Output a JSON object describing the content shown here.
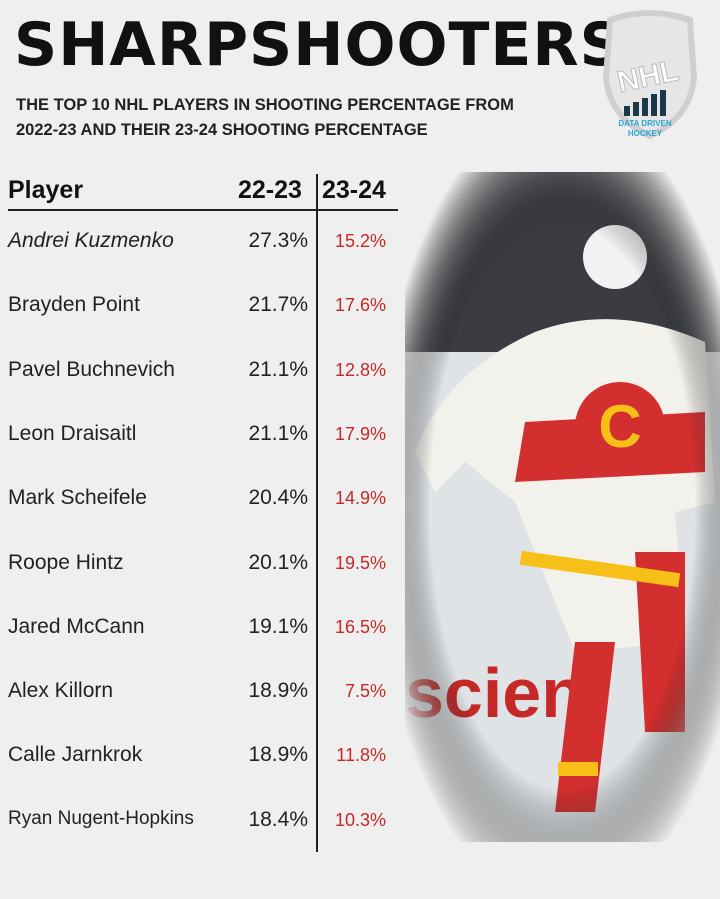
{
  "header": {
    "title": "SHARPSHOOTERS?",
    "subtitle_lines": [
      "THE TOP 10 NHL PLAYERS IN SHOOTING PERCENTAGE FROM",
      "2022-23 AND THEIR 23-24 SHOOTING PERCENTAGE"
    ]
  },
  "logo": {
    "shield": "NHL",
    "caption_lines": [
      "DATA DRIVEN",
      "HOCKEY"
    ]
  },
  "table": {
    "columns": [
      "Player",
      "22-23",
      "23-24"
    ],
    "rows": [
      [
        "Andrei Kuzmenko",
        "27.3%",
        "15.2%"
      ],
      [
        "Brayden Point",
        "21.7%",
        "17.6%"
      ],
      [
        "Pavel Buchnevich",
        "21.1%",
        "12.8%"
      ],
      [
        "Leon Draisaitl",
        "21.1%",
        "17.9%"
      ],
      [
        "Mark Scheifele",
        "20.4%",
        "14.9%"
      ],
      [
        "Roope Hintz",
        "20.1%",
        "19.5%"
      ],
      [
        "Jared McCann",
        "19.1%",
        "16.5%"
      ],
      [
        "Alex Killorn",
        "18.9%",
        "7.5%"
      ],
      [
        "Calle Jarnkrok",
        "18.9%",
        "11.8%"
      ],
      [
        "Ryan Nugent-Hopkins",
        "18.4%",
        "10.3%"
      ]
    ]
  },
  "photo": {
    "sign_text": "scien"
  }
}
